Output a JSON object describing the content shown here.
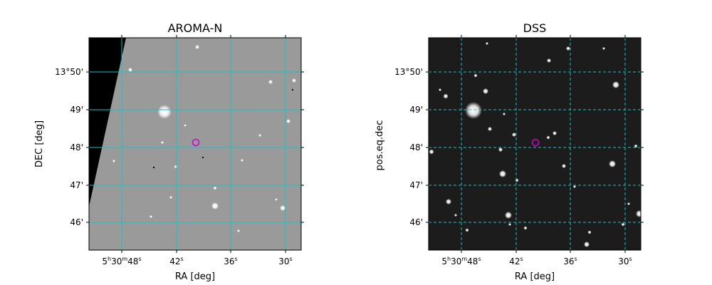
{
  "panels": [
    {
      "title": "AROMA-N",
      "xlabel": "RA [deg]",
      "ylabel": "DEC [deg]",
      "x_ticks": [
        {
          "main": "5",
          "sup1": "h",
          "main2": "30",
          "sup2": "m",
          "main3": "48",
          "sup3": "s"
        },
        {
          "main": "42",
          "sup1": "s"
        },
        {
          "main": "36",
          "sup1": "s"
        },
        {
          "main": "30",
          "sup1": "s"
        }
      ],
      "y_ticks": [
        "13°50'",
        "49'",
        "48'",
        "47'",
        "46'"
      ],
      "background": "#9a9a9a",
      "grid_color": "#19c3c3",
      "marker_color": "#d000d0"
    },
    {
      "title": "DSS",
      "xlabel": "RA [deg]",
      "ylabel": "pos.eq.dec",
      "x_ticks": [
        {
          "main": "5",
          "sup1": "h",
          "main2": "30",
          "sup2": "m",
          "main3": "48",
          "sup3": "s"
        },
        {
          "main": "42",
          "sup1": "s"
        },
        {
          "main": "36",
          "sup1": "s"
        },
        {
          "main": "30",
          "sup1": "s"
        }
      ],
      "y_ticks": [
        "13°50'",
        "49'",
        "48'",
        "47'",
        "46'"
      ],
      "background": "#1c1c1c",
      "grid_color": "#19c3c3",
      "marker_color": "#d000d0"
    }
  ]
}
